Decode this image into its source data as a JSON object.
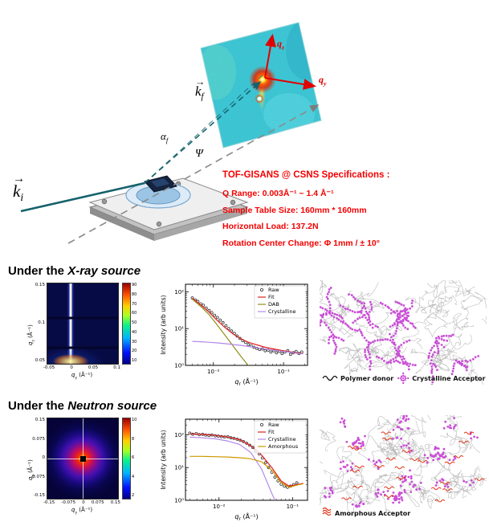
{
  "scene": {
    "arrow": "→",
    "ki": {
      "pre": "k",
      "sub": "i"
    },
    "kf": {
      "pre": "k",
      "sub": "f"
    },
    "alpha_f": {
      "pre": "α",
      "sub": "f"
    },
    "psi": "Ψ",
    "qz": {
      "pre": "q",
      "sub": "z"
    },
    "qy": {
      "pre": "q",
      "sub": "y"
    }
  },
  "specs": {
    "title": "TOF-GISANS @ CSNS Specifications :",
    "color": "#f40000",
    "lines": [
      "Q Range: 0.003Å⁻¹ ~ 1.4 Å⁻¹",
      "Sample Table Size: 160mm * 160mm",
      "Horizontal Load: 137.2N",
      "Rotation Center Change: Φ 1mm / ± 10°"
    ]
  },
  "sections": {
    "xray": {
      "prefix": "Under the ",
      "source": "X-ray source"
    },
    "neutron": {
      "prefix": "Under the ",
      "source": "Neutron source"
    }
  },
  "schematics": {
    "xray": {
      "seed": 7,
      "mode": "clusters",
      "strand_color": "#b4b4b4",
      "dot_color": "#c94fd6",
      "legend": [
        {
          "icon": "chain",
          "label": "Polymer donor"
        },
        {
          "icon": "dot-star",
          "label": "Crystalline Acceptor"
        }
      ]
    },
    "neutron": {
      "seed": 13,
      "mode": "spread",
      "strand_color": "#b4b4b4",
      "dot_color": "#c94fd6",
      "squiggle_color": "#e03010",
      "legend": [
        {
          "icon": "squiggle",
          "label": "Amorphous Acceptor"
        }
      ]
    }
  },
  "chart_data": [
    {
      "id": "detector2d",
      "type": "heatmap",
      "title": "TOF-GISANS 2D detector image (tilted panel)",
      "axes": {
        "vertical": "qz",
        "horizontal": "qy"
      },
      "description": "Cyan/turquoise noisy detector panel with bright red-yellow specular spot, red qz and qy arrows"
    },
    {
      "id": "xray_map",
      "type": "heatmap",
      "xlabel_parts": {
        "pre": "q",
        "sub": "y",
        "post": " (Å⁻¹)"
      },
      "ylabel_parts": {
        "pre": "q",
        "sub": "z",
        "post": " (Å⁻¹)"
      },
      "xlim": [
        -0.05,
        0.1
      ],
      "ylim": [
        0.02,
        0.15
      ],
      "xticks": [
        "-0.05",
        "0",
        "0.05",
        "0.1"
      ],
      "yticks": [
        "0.15",
        "0.1",
        "0.05"
      ],
      "cticks": [
        "90",
        "80",
        "70",
        "60",
        "50",
        "40",
        "30",
        "20",
        "10"
      ],
      "description": "GISAXS map: bright vertical specular rod at qy=0 on dark blue background, two dark horizontal detector-gap lines"
    },
    {
      "id": "xray_profile",
      "type": "line+scatter",
      "xlabel_parts": {
        "pre": "q",
        "sub": "r",
        "post": " (Å⁻¹)"
      },
      "ylabel": "Intensity (arb units)",
      "xlim": [
        0.004,
        0.22
      ],
      "ylim": [
        1,
        160
      ],
      "xticks": [
        {
          "v": 0.01,
          "label": "10⁻²"
        },
        {
          "v": 0.1,
          "label": "10⁻¹"
        }
      ],
      "yticks": [
        {
          "v": 1,
          "label": "10⁰"
        },
        {
          "v": 10,
          "label": "10¹"
        },
        {
          "v": 100,
          "label": "10²"
        }
      ],
      "series": [
        {
          "name": "Raw",
          "kind": "scatter",
          "color": "#333333",
          "x": [
            0.005,
            0.0055,
            0.006,
            0.0066,
            0.0072,
            0.0079,
            0.0087,
            0.0095,
            0.0104,
            0.0114,
            0.0125,
            0.0137,
            0.0151,
            0.0165,
            0.0181,
            0.0199,
            0.0218,
            0.0239,
            0.0262,
            0.0288,
            0.0315,
            0.0346,
            0.0379,
            0.0416,
            0.0456,
            0.05,
            0.0549,
            0.0602,
            0.066,
            0.0724,
            0.0794,
            0.0871,
            0.0955,
            0.1047,
            0.1148,
            0.1259,
            0.1381,
            0.1514,
            0.166,
            0.182
          ],
          "y": [
            68,
            60,
            55,
            47,
            43,
            36,
            31,
            27,
            23,
            20,
            17,
            14.5,
            12,
            10,
            8.6,
            7.4,
            6.3,
            5.4,
            4.7,
            4.2,
            3.7,
            3.4,
            3.1,
            2.9,
            2.7,
            2.8,
            2.5,
            2.6,
            2.3,
            2.5,
            2.2,
            2.4,
            2.1,
            2.3,
            2.5,
            2.0,
            2.2,
            2.4,
            2.1,
            2.3
          ]
        },
        {
          "name": "Fit",
          "kind": "line",
          "color": "#e02020",
          "x": [
            0.005,
            0.0065,
            0.0085,
            0.011,
            0.0145,
            0.019,
            0.025,
            0.032,
            0.042,
            0.055,
            0.072,
            0.094,
            0.122,
            0.15,
            0.19
          ],
          "y": [
            67,
            45,
            29,
            17.5,
            10.8,
            7.2,
            5.2,
            4.2,
            3.6,
            3.1,
            2.8,
            2.55,
            2.35,
            2.2,
            2.1
          ]
        },
        {
          "name": "DAB",
          "kind": "line",
          "color": "#8f8f1a",
          "x": [
            0.005,
            0.0065,
            0.0085,
            0.011,
            0.0145,
            0.019,
            0.025,
            0.032,
            0.042,
            0.055,
            0.072,
            0.094,
            0.122,
            0.15,
            0.19
          ],
          "y": [
            63,
            41,
            25,
            13.5,
            6.8,
            3.4,
            1.7,
            0.95,
            0.55,
            0.32,
            0.19,
            0.12,
            0.07,
            0.05,
            0.03
          ]
        },
        {
          "name": "Crystalline",
          "kind": "line",
          "color": "#b388e8",
          "x": [
            0.005,
            0.0065,
            0.0085,
            0.011,
            0.0145,
            0.019,
            0.025,
            0.032,
            0.042,
            0.055,
            0.072,
            0.094,
            0.122,
            0.15,
            0.19
          ],
          "y": [
            4.5,
            4.4,
            4.25,
            4.1,
            3.9,
            3.7,
            3.5,
            3.25,
            3.0,
            2.78,
            2.6,
            2.43,
            2.28,
            2.15,
            2.05
          ]
        }
      ]
    },
    {
      "id": "neutron_map",
      "type": "heatmap",
      "xlabel_parts": {
        "pre": "q",
        "sub": "y",
        "post": " (Å⁻¹)"
      },
      "ylabel_parts": {
        "pre": "q",
        "sub": "z",
        "post": " (Å⁻¹)"
      },
      "xlim": [
        -0.15,
        0.15
      ],
      "ylim": [
        -0.15,
        0.15
      ],
      "xticks": [
        "-0.15",
        "-0.075",
        "0",
        "0.075",
        "0.15"
      ],
      "yticks": [
        "0.15",
        "0.075",
        "0",
        "-0.075",
        "-0.15"
      ],
      "cticks": [
        "10",
        "8",
        "6",
        "4",
        "2"
      ],
      "description": "GISANS map: centered red-orange blob fading through purple to dark blue, white crosshair, central black beamstop square"
    },
    {
      "id": "neutron_profile",
      "type": "line+scatter",
      "xlabel_parts": {
        "pre": "q",
        "sub": "r",
        "post": " (Å⁻¹)"
      },
      "ylabel": "Intensity (arb units)",
      "xlim": [
        0.0035,
        0.16
      ],
      "ylim": [
        1,
        300
      ],
      "xticks": [
        {
          "v": 0.01,
          "label": "10⁻²"
        },
        {
          "v": 0.1,
          "label": "10⁻¹"
        }
      ],
      "yticks": [
        {
          "v": 1,
          "label": "10⁰"
        },
        {
          "v": 10,
          "label": "10¹"
        },
        {
          "v": 100,
          "label": "10²"
        }
      ],
      "series": [
        {
          "name": "Raw",
          "kind": "scatter",
          "color": "#333333",
          "x": [
            0.004,
            0.0044,
            0.0049,
            0.0054,
            0.006,
            0.0066,
            0.0073,
            0.008,
            0.0089,
            0.0098,
            0.0108,
            0.0119,
            0.0132,
            0.0145,
            0.016,
            0.0177,
            0.0195,
            0.0215,
            0.0238,
            0.0262,
            0.0289,
            0.0319,
            0.0352,
            0.0389,
            0.0429,
            0.0473,
            0.0522,
            0.0576,
            0.0635,
            0.0701,
            0.0773,
            0.0853,
            0.0941,
            0.1038,
            0.1145
          ],
          "y": [
            112,
            104,
            109,
            101,
            103,
            98,
            96,
            99,
            93,
            91,
            88,
            86,
            87,
            81,
            78,
            73,
            68,
            62,
            55,
            48,
            41,
            33,
            26,
            19.5,
            14,
            10,
            7.2,
            5.1,
            3.9,
            3.1,
            2.7,
            2.5,
            2.7,
            3.0,
            3.4
          ]
        },
        {
          "name": "Fit",
          "kind": "line",
          "color": "#e02020",
          "x": [
            0.004,
            0.006,
            0.009,
            0.013,
            0.019,
            0.027,
            0.038,
            0.053,
            0.07,
            0.09,
            0.115,
            0.14
          ],
          "y": [
            107,
            103,
            96,
            86,
            71,
            47,
            24,
            9.5,
            3.9,
            2.7,
            3.0,
            3.3
          ]
        },
        {
          "name": "Crystalline",
          "kind": "line",
          "color": "#b388e8",
          "x": [
            0.004,
            0.006,
            0.009,
            0.013,
            0.019,
            0.027,
            0.038,
            0.053,
            0.07,
            0.09,
            0.115,
            0.14
          ],
          "y": [
            85,
            81,
            75,
            65,
            51,
            29,
            9,
            1.5,
            0.4,
            0.15,
            0.06,
            0.03
          ]
        },
        {
          "name": "Amorphous",
          "kind": "line",
          "color": "#cc9900",
          "x": [
            0.004,
            0.006,
            0.009,
            0.013,
            0.019,
            0.027,
            0.038,
            0.053,
            0.07,
            0.09,
            0.115,
            0.14
          ],
          "y": [
            22,
            22,
            21.5,
            21,
            20,
            18.5,
            15,
            8,
            3.5,
            2.5,
            2.9,
            3.2
          ]
        }
      ]
    }
  ]
}
